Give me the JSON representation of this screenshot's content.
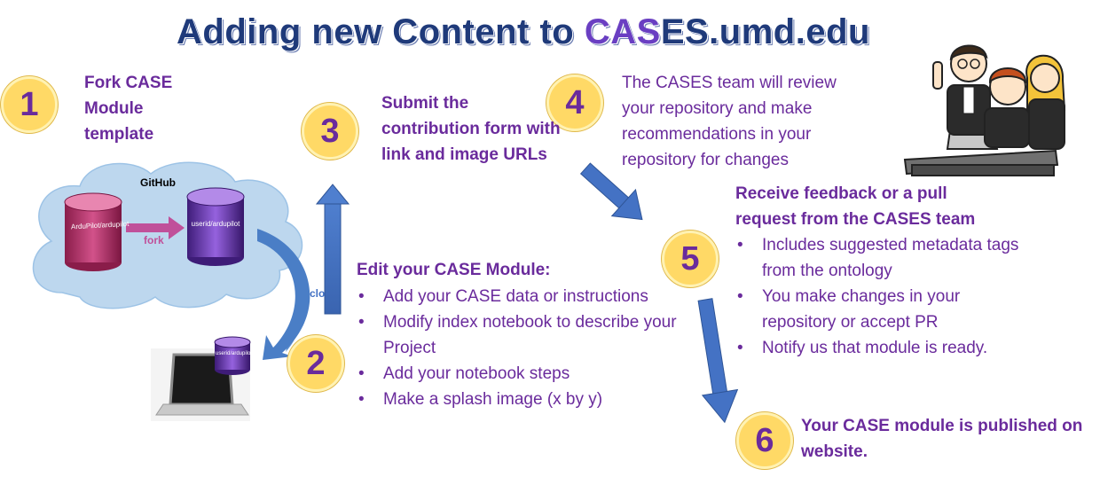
{
  "title": {
    "prefix": "Adding new Content to ",
    "highlight": "CAS",
    "suffix": "ES.umd.edu"
  },
  "steps": [
    {
      "number": "1",
      "text": "Fork CASE Module template"
    },
    {
      "number": "2"
    },
    {
      "number": "3",
      "text": "Submit the contribution form with link and image URLs"
    },
    {
      "number": "4",
      "text": "The CASES team will review your repository and make recommendations in your repository for changes"
    },
    {
      "number": "5",
      "heading": "Receive feedback or a pull request from the CASES team",
      "bullets": [
        "Includes suggested metadata tags from the ontology",
        "You make changes in your repository or accept PR",
        "Notify us that module is ready."
      ]
    },
    {
      "number": "6",
      "text": "Your CASE module is published on website."
    }
  ],
  "edit_module": {
    "heading": "Edit your CASE Module:",
    "bullets": [
      "Add your CASE data or instructions",
      "Modify index notebook to describe your Project",
      "Add your notebook steps",
      "Make a splash image (x by y)"
    ]
  },
  "github": {
    "cloud_label": "GitHub",
    "source_repo": "ArduPilot/ardupilot",
    "fork_repo": "userid/ardupilot",
    "fork_label": "fork",
    "clone_label": "clo",
    "laptop_repo": "userid/ardupilot"
  },
  "colors": {
    "title": "#1f3a7a",
    "accent": "#6a2b9c",
    "badge": "#ffd966",
    "arrow": "#4472c4",
    "cloud": "#bdd7ee"
  }
}
